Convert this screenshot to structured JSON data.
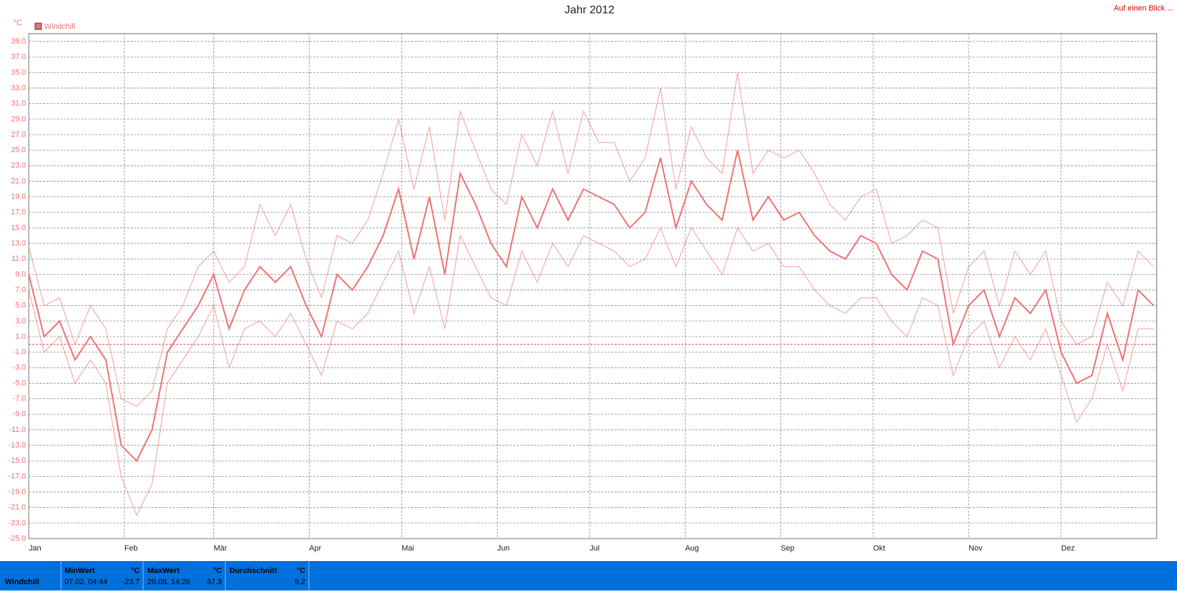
{
  "chart_data": {
    "type": "line",
    "title": "Jahr 2012",
    "link": "Auf einen Blick ...",
    "unit": "°C",
    "xlim": [
      0,
      366
    ],
    "xticks": [
      {
        "value": 0,
        "label": "Jan"
      },
      {
        "value": 31,
        "label": "Feb"
      },
      {
        "value": 60,
        "label": "Mär"
      },
      {
        "value": 91,
        "label": "Apr"
      },
      {
        "value": 121,
        "label": "Mai"
      },
      {
        "value": 152,
        "label": "Jun"
      },
      {
        "value": 182,
        "label": "Jul"
      },
      {
        "value": 213,
        "label": "Aug"
      },
      {
        "value": 244,
        "label": "Sep"
      },
      {
        "value": 274,
        "label": "Okt"
      },
      {
        "value": 305,
        "label": "Nov"
      },
      {
        "value": 335,
        "label": "Dez"
      }
    ],
    "ylim": [
      -25,
      40
    ],
    "yticks": [
      {
        "value": 39,
        "label": "39.0"
      },
      {
        "value": 37,
        "label": "37.0"
      },
      {
        "value": 35,
        "label": "35.0"
      },
      {
        "value": 33,
        "label": "33.0"
      },
      {
        "value": 31,
        "label": "31.0"
      },
      {
        "value": 29,
        "label": "29.0"
      },
      {
        "value": 27,
        "label": "27.0"
      },
      {
        "value": 25,
        "label": "25.0"
      },
      {
        "value": 23,
        "label": "23.0"
      },
      {
        "value": 21,
        "label": "21.0"
      },
      {
        "value": 19,
        "label": "19.0"
      },
      {
        "value": 17,
        "label": "17.0"
      },
      {
        "value": 15,
        "label": "15.0"
      },
      {
        "value": 13,
        "label": "13.0"
      },
      {
        "value": 11,
        "label": "11.0"
      },
      {
        "value": 9,
        "label": "9.0"
      },
      {
        "value": 7,
        "label": "7.0"
      },
      {
        "value": 5,
        "label": "5.0"
      },
      {
        "value": 3,
        "label": "3.0"
      },
      {
        "value": 1,
        "label": "1.0"
      },
      {
        "value": -1,
        "label": "-1.0"
      },
      {
        "value": -3,
        "label": "-3.0"
      },
      {
        "value": -5,
        "label": "-5.0"
      },
      {
        "value": -7,
        "label": "-7.0"
      },
      {
        "value": -9,
        "label": "-9.0"
      },
      {
        "value": -11,
        "label": "-11.0"
      },
      {
        "value": -13,
        "label": "-13.0"
      },
      {
        "value": -15,
        "label": "-15.0"
      },
      {
        "value": -17,
        "label": "-17.0"
      },
      {
        "value": -19,
        "label": "-19.0"
      },
      {
        "value": -21,
        "label": "-21.0"
      },
      {
        "value": -23,
        "label": "-23.0"
      },
      {
        "value": -25,
        "label": "-25.0"
      }
    ],
    "grid": true,
    "reference_line": 0,
    "x": [
      0,
      5,
      10,
      15,
      20,
      25,
      30,
      35,
      40,
      45,
      50,
      55,
      60,
      65,
      70,
      75,
      80,
      85,
      90,
      95,
      100,
      105,
      110,
      115,
      120,
      125,
      130,
      135,
      140,
      145,
      150,
      155,
      160,
      165,
      170,
      175,
      180,
      185,
      190,
      195,
      200,
      205,
      210,
      215,
      220,
      225,
      230,
      235,
      240,
      245,
      250,
      255,
      260,
      265,
      270,
      275,
      280,
      285,
      290,
      295,
      300,
      305,
      310,
      315,
      320,
      325,
      330,
      335,
      340,
      345,
      350,
      355,
      360,
      365
    ],
    "series": [
      {
        "name": "Windchill",
        "color": "#f07070",
        "values": [
          9,
          1,
          3,
          -2,
          1,
          -2,
          -13,
          -15,
          -11,
          -1,
          2,
          5,
          9,
          2,
          7,
          10,
          8,
          10,
          5,
          1,
          9,
          7,
          10,
          14,
          20,
          11,
          19,
          9,
          22,
          18,
          13,
          10,
          19,
          15,
          20,
          16,
          20,
          19,
          18,
          15,
          17,
          24,
          15,
          21,
          18,
          16,
          25,
          16,
          19,
          16,
          17,
          14,
          12,
          11,
          14,
          13,
          9,
          7,
          12,
          11,
          0,
          5,
          7,
          1,
          6,
          4,
          7,
          -1,
          -5,
          -4,
          4,
          -2,
          7,
          5
        ],
        "high": [
          12.5,
          5,
          6,
          0,
          5,
          2,
          -7,
          -8,
          -6,
          2,
          5,
          10,
          12,
          8,
          10,
          18,
          14,
          18,
          11,
          6,
          14,
          13,
          16,
          22,
          29,
          20,
          28,
          16,
          30,
          25,
          20,
          18,
          27,
          23,
          30,
          22,
          30,
          26,
          26,
          21,
          24,
          33,
          20,
          28,
          24,
          22,
          35,
          22,
          25,
          24,
          25,
          22,
          18,
          16,
          19,
          20,
          13,
          14,
          16,
          15,
          4,
          10,
          12,
          5,
          12,
          9,
          12,
          3,
          0,
          1,
          8,
          5,
          12,
          10
        ],
        "low": [
          7,
          -1,
          1,
          -5,
          -2,
          -5,
          -17,
          -22,
          -18,
          -5,
          -2,
          1,
          5,
          -3,
          2,
          3,
          1,
          4,
          0,
          -4,
          3,
          2,
          4,
          8,
          12,
          4,
          10,
          2,
          14,
          10,
          6,
          5,
          12,
          8,
          13,
          10,
          14,
          13,
          12,
          10,
          11,
          15,
          10,
          15,
          12,
          9,
          15,
          12,
          13,
          10,
          10,
          7,
          5,
          4,
          6,
          6,
          3,
          1,
          6,
          5,
          -4,
          1,
          3,
          -3,
          1,
          -2,
          2,
          -4,
          -10,
          -7,
          0,
          -6,
          2,
          2
        ]
      }
    ]
  },
  "summary": {
    "row_label": "Windchill",
    "columns": [
      {
        "title": "MinWert",
        "unit": "°C",
        "time": "07.02. 04:44",
        "value": "-23.7"
      },
      {
        "title": "MaxWert",
        "unit": "°C",
        "time": "20.08. 14:26",
        "value": "37.3"
      },
      {
        "title": "Durchschnitt",
        "unit": "°C",
        "time": "",
        "value": "9.2"
      }
    ]
  }
}
